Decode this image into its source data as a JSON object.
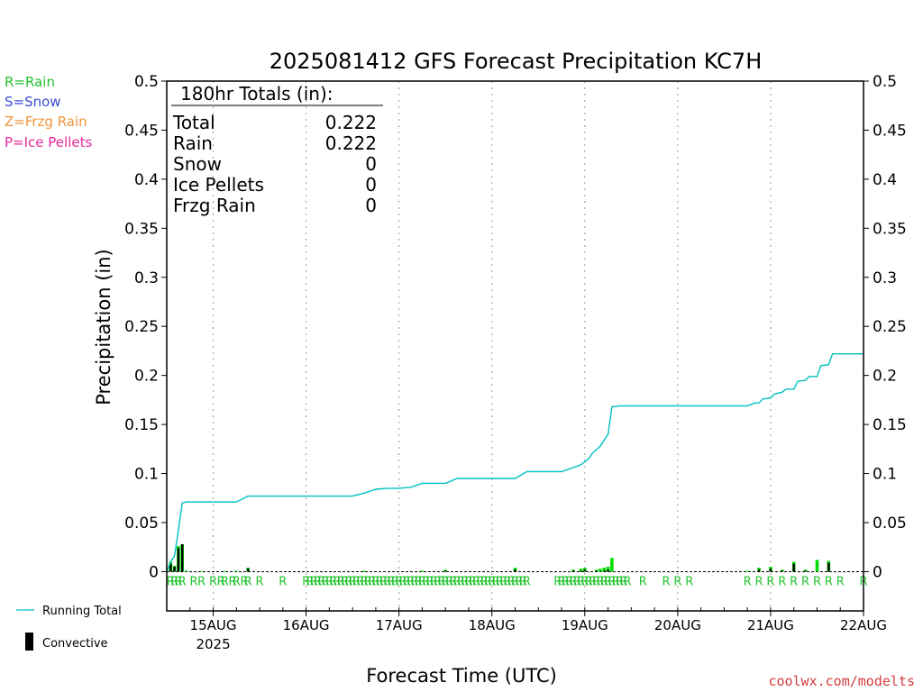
{
  "chart_data": {
    "type": "bar",
    "title": "2025081412 GFS Forecast Precipitation KC7H",
    "ylabel": "Precipitation (in)",
    "xlabel": "Forecast Time (UTC)",
    "ylim": [
      -0.04,
      0.5
    ],
    "yticks": [
      "0",
      "0.05",
      "0.1",
      "0.15",
      "0.2",
      "0.25",
      "0.3",
      "0.35",
      "0.4",
      "0.45",
      "0.5"
    ],
    "xrange": [
      "2025-08-14T12",
      "2025-08-22T00"
    ],
    "xticks": [
      {
        "label": "15AUG",
        "sub": "2025",
        "date": "2025-08-15T00"
      },
      {
        "label": "16AUG",
        "sub": "",
        "date": "2025-08-16T00"
      },
      {
        "label": "17AUG",
        "sub": "",
        "date": "2025-08-17T00"
      },
      {
        "label": "18AUG",
        "sub": "",
        "date": "2025-08-18T00"
      },
      {
        "label": "19AUG",
        "sub": "",
        "date": "2025-08-19T00"
      },
      {
        "label": "20AUG",
        "sub": "",
        "date": "2025-08-20T00"
      },
      {
        "label": "21AUG",
        "sub": "",
        "date": "2025-08-21T00"
      },
      {
        "label": "22AUG",
        "sub": "",
        "date": "2025-08-22T00"
      }
    ],
    "grid": "vertical-dotted",
    "precip_type_legend": [
      {
        "text": "R=Rain",
        "color": "#22c32e"
      },
      {
        "text": "S=Snow",
        "color": "#3c4bd6"
      },
      {
        "text": "Z=Frzg Rain",
        "color": "#f0963c"
      },
      {
        "text": "P=Ice Pellets",
        "color": "#e6289a"
      }
    ],
    "series_legend": {
      "running_total": "Running Total",
      "convective": "Convective"
    },
    "summary": {
      "header": "180hr Totals (in):",
      "rows": [
        {
          "label": "Total",
          "value": "0.222"
        },
        {
          "label": "Rain",
          "value": "0.222"
        },
        {
          "label": "Snow",
          "value": "0"
        },
        {
          "label": "Ice Pellets",
          "value": "0"
        },
        {
          "label": "Frzg Rain",
          "value": "0"
        }
      ]
    },
    "type_marker_text": "R",
    "colors": {
      "rain": "#00dd00",
      "convective": "#000000",
      "running_total": "#00c0c0",
      "rain_marker": "#22c32e"
    },
    "bars": [
      {
        "time": "2025-08-14T13",
        "rain": 0.01,
        "convective": 0.008
      },
      {
        "time": "2025-08-14T14",
        "rain": 0.006,
        "convective": 0.005
      },
      {
        "time": "2025-08-14T15",
        "rain": 0.026,
        "convective": 0.024
      },
      {
        "time": "2025-08-14T16",
        "rain": 0.028,
        "convective": 0.028
      },
      {
        "time": "2025-08-14T17",
        "rain": 0.001,
        "convective": 0.0
      },
      {
        "time": "2025-08-14T21",
        "rain": 0.0006,
        "convective": 0.0
      },
      {
        "time": "2025-08-15T03",
        "rain": 0.0008,
        "convective": 0.0
      },
      {
        "time": "2025-08-15T06",
        "rain": 0.0008,
        "convective": 0.0
      },
      {
        "time": "2025-08-15T09",
        "rain": 0.004,
        "convective": 0.003
      },
      {
        "time": "2025-08-16T15",
        "rain": 0.001,
        "convective": 0.0
      },
      {
        "time": "2025-08-17T06",
        "rain": 0.001,
        "convective": 0.0
      },
      {
        "time": "2025-08-17T12",
        "rain": 0.002,
        "convective": 0.001
      },
      {
        "time": "2025-08-18T06",
        "rain": 0.004,
        "convective": 0.002
      },
      {
        "time": "2025-08-18T21",
        "rain": 0.002,
        "convective": 0.001
      },
      {
        "time": "2025-08-18T23",
        "rain": 0.003,
        "convective": 0.001
      },
      {
        "time": "2025-08-19T00",
        "rain": 0.004,
        "convective": 0.002
      },
      {
        "time": "2025-08-19T03",
        "rain": 0.002,
        "convective": 0.001
      },
      {
        "time": "2025-08-19T04",
        "rain": 0.003,
        "convective": 0.0
      },
      {
        "time": "2025-08-19T05",
        "rain": 0.004,
        "convective": 0.001
      },
      {
        "time": "2025-08-19T06",
        "rain": 0.005,
        "convective": 0.002
      },
      {
        "time": "2025-08-19T07",
        "rain": 0.014,
        "convective": 0.0
      },
      {
        "time": "2025-08-20T18",
        "rain": 0.001,
        "convective": 0.0
      },
      {
        "time": "2025-08-20T21",
        "rain": 0.004,
        "convective": 0.002
      },
      {
        "time": "2025-08-21T00",
        "rain": 0.005,
        "convective": 0.003
      },
      {
        "time": "2025-08-21T03",
        "rain": 0.002,
        "convective": 0.001
      },
      {
        "time": "2025-08-21T06",
        "rain": 0.01,
        "convective": 0.008
      },
      {
        "time": "2025-08-21T09",
        "rain": 0.002,
        "convective": 0.001
      },
      {
        "time": "2025-08-21T12",
        "rain": 0.012,
        "convective": 0.0
      },
      {
        "time": "2025-08-21T15",
        "rain": 0.011,
        "convective": 0.009
      }
    ],
    "running_total": [
      {
        "time": "2025-08-14T12",
        "value": 0.0
      },
      {
        "time": "2025-08-14T13",
        "value": 0.01
      },
      {
        "time": "2025-08-14T14",
        "value": 0.016
      },
      {
        "time": "2025-08-14T15",
        "value": 0.042
      },
      {
        "time": "2025-08-14T16",
        "value": 0.07
      },
      {
        "time": "2025-08-14T17",
        "value": 0.071
      },
      {
        "time": "2025-08-15T06",
        "value": 0.071
      },
      {
        "time": "2025-08-15T09",
        "value": 0.077
      },
      {
        "time": "2025-08-16T12",
        "value": 0.077
      },
      {
        "time": "2025-08-16T15",
        "value": 0.08
      },
      {
        "time": "2025-08-16T18",
        "value": 0.084
      },
      {
        "time": "2025-08-16T21",
        "value": 0.085
      },
      {
        "time": "2025-08-17T00",
        "value": 0.085
      },
      {
        "time": "2025-08-17T03",
        "value": 0.086
      },
      {
        "time": "2025-08-17T06",
        "value": 0.09
      },
      {
        "time": "2025-08-17T12",
        "value": 0.09
      },
      {
        "time": "2025-08-17T15",
        "value": 0.095
      },
      {
        "time": "2025-08-18T06",
        "value": 0.095
      },
      {
        "time": "2025-08-18T09",
        "value": 0.102
      },
      {
        "time": "2025-08-18T18",
        "value": 0.102
      },
      {
        "time": "2025-08-18T21",
        "value": 0.106
      },
      {
        "time": "2025-08-18T23",
        "value": 0.109
      },
      {
        "time": "2025-08-19T01",
        "value": 0.115
      },
      {
        "time": "2025-08-19T02",
        "value": 0.121
      },
      {
        "time": "2025-08-19T04",
        "value": 0.128
      },
      {
        "time": "2025-08-19T06",
        "value": 0.14
      },
      {
        "time": "2025-08-19T07",
        "value": 0.168
      },
      {
        "time": "2025-08-19T09",
        "value": 0.169
      },
      {
        "time": "2025-08-20T18",
        "value": 0.169
      },
      {
        "time": "2025-08-20T20",
        "value": 0.172
      },
      {
        "time": "2025-08-20T21",
        "value": 0.172
      },
      {
        "time": "2025-08-20T22",
        "value": 0.176
      },
      {
        "time": "2025-08-21T00",
        "value": 0.177
      },
      {
        "time": "2025-08-21T01",
        "value": 0.181
      },
      {
        "time": "2025-08-21T03",
        "value": 0.183
      },
      {
        "time": "2025-08-21T04",
        "value": 0.186
      },
      {
        "time": "2025-08-21T06",
        "value": 0.186
      },
      {
        "time": "2025-08-21T07",
        "value": 0.194
      },
      {
        "time": "2025-08-21T09",
        "value": 0.195
      },
      {
        "time": "2025-08-21T10",
        "value": 0.199
      },
      {
        "time": "2025-08-21T12",
        "value": 0.199
      },
      {
        "time": "2025-08-21T13",
        "value": 0.21
      },
      {
        "time": "2025-08-21T15",
        "value": 0.211
      },
      {
        "time": "2025-08-21T16",
        "value": 0.222
      },
      {
        "time": "2025-08-22T00",
        "value": 0.222
      }
    ],
    "rain_markers": [
      "2025-08-14T13",
      "2025-08-14T14",
      "2025-08-14T15",
      "2025-08-14T16",
      "2025-08-14T19",
      "2025-08-14T21",
      "2025-08-15T00",
      "2025-08-15T02",
      "2025-08-15T03",
      "2025-08-15T05",
      "2025-08-15T06",
      "2025-08-15T08",
      "2025-08-15T09",
      "2025-08-15T12",
      "2025-08-15T18",
      "2025-08-16T00",
      "2025-08-16T01",
      "2025-08-16T02",
      "2025-08-16T03",
      "2025-08-16T04",
      "2025-08-16T05",
      "2025-08-16T06",
      "2025-08-16T07",
      "2025-08-16T08",
      "2025-08-16T09",
      "2025-08-16T10",
      "2025-08-16T11",
      "2025-08-16T12",
      "2025-08-16T13",
      "2025-08-16T14",
      "2025-08-16T15",
      "2025-08-16T16",
      "2025-08-16T17",
      "2025-08-16T18",
      "2025-08-16T19",
      "2025-08-16T20",
      "2025-08-16T21",
      "2025-08-16T22",
      "2025-08-16T23",
      "2025-08-17T00",
      "2025-08-17T01",
      "2025-08-17T02",
      "2025-08-17T03",
      "2025-08-17T04",
      "2025-08-17T05",
      "2025-08-17T06",
      "2025-08-17T07",
      "2025-08-17T08",
      "2025-08-17T09",
      "2025-08-17T10",
      "2025-08-17T11",
      "2025-08-17T12",
      "2025-08-17T13",
      "2025-08-17T14",
      "2025-08-17T15",
      "2025-08-17T16",
      "2025-08-17T17",
      "2025-08-17T18",
      "2025-08-17T19",
      "2025-08-17T20",
      "2025-08-17T21",
      "2025-08-17T22",
      "2025-08-17T23",
      "2025-08-18T00",
      "2025-08-18T01",
      "2025-08-18T02",
      "2025-08-18T03",
      "2025-08-18T04",
      "2025-08-18T05",
      "2025-08-18T06",
      "2025-08-18T07",
      "2025-08-18T08",
      "2025-08-18T09",
      "2025-08-18T17",
      "2025-08-18T18",
      "2025-08-18T19",
      "2025-08-18T20",
      "2025-08-18T21",
      "2025-08-18T22",
      "2025-08-18T23",
      "2025-08-19T00",
      "2025-08-19T01",
      "2025-08-19T02",
      "2025-08-19T03",
      "2025-08-19T04",
      "2025-08-19T05",
      "2025-08-19T06",
      "2025-08-19T07",
      "2025-08-19T08",
      "2025-08-19T09",
      "2025-08-19T10",
      "2025-08-19T11",
      "2025-08-19T15",
      "2025-08-19T21",
      "2025-08-20T00",
      "2025-08-20T03",
      "2025-08-20T18",
      "2025-08-20T21",
      "2025-08-21T00",
      "2025-08-21T03",
      "2025-08-21T06",
      "2025-08-21T09",
      "2025-08-21T12",
      "2025-08-21T15",
      "2025-08-21T18",
      "2025-08-22T00"
    ]
  },
  "credit": "coolwx.com/modelts"
}
